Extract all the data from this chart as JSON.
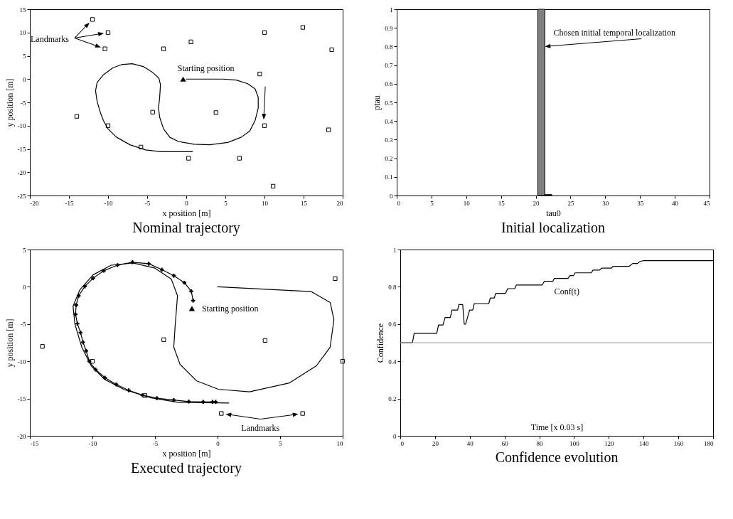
{
  "chart_data": [
    {
      "type": "line",
      "title": "Nominal trajectory",
      "xlabel": "x position [m]",
      "ylabel": "y position [m]",
      "xlim": [
        -20,
        20
      ],
      "ylim": [
        -25,
        15
      ],
      "xticks": [
        -20,
        -15,
        -10,
        -5,
        0,
        5,
        10,
        15,
        20
      ],
      "yticks": [
        -25,
        -20,
        -15,
        -10,
        -5,
        0,
        5,
        10,
        15
      ],
      "series": [
        {
          "type": "line",
          "color": "#000000",
          "x": [
            0,
            4.7,
            6.4,
            7.85,
            8.8,
            9.2,
            9.2,
            8.8,
            8.1,
            7.0,
            5.3,
            3.0,
            1.0,
            -1.0,
            -2.1,
            -2.9,
            -3.4,
            -3.55,
            -3.4,
            -3.3,
            -3.5,
            -4.35,
            -5.5,
            -6.9,
            -8.3,
            -9.4,
            -10.6,
            -11.4,
            -11.6,
            -11.4,
            -11.0,
            -10.6,
            -10.0,
            -8.9,
            -7.2,
            -5.2,
            -3.2,
            -1.0,
            0.8
          ],
          "values": [
            0,
            0,
            -0.2,
            -1.0,
            -2.1,
            -3.9,
            -6.2,
            -8.9,
            -11.2,
            -12.5,
            -13.6,
            -14.1,
            -14.0,
            -13.4,
            -12.5,
            -10.7,
            -8.2,
            -6.2,
            -3.9,
            -1.2,
            0.2,
            1.5,
            2.7,
            3.3,
            3.1,
            2.4,
            0.9,
            -0.7,
            -2.5,
            -4.8,
            -7.1,
            -8.9,
            -10.7,
            -12.5,
            -14.1,
            -15.2,
            -15.6,
            -15.6,
            -15.6
          ]
        },
        {
          "type": "scatter",
          "marker": "square",
          "color": "#000000",
          "x": [
            -12,
            -10,
            -10.4,
            -2.9,
            0.6,
            10,
            14.9,
            18.6,
            9.4,
            -14,
            -10,
            -4.3,
            3.8,
            10,
            18.2,
            -5.8,
            0.3,
            6.8,
            11.1
          ],
          "values": [
            12.8,
            10,
            6.5,
            6.5,
            8,
            10,
            11.1,
            6.3,
            1.1,
            -8,
            -10,
            -7.1,
            -7.2,
            -10,
            -10.9,
            -14.6,
            -17,
            -17,
            -23
          ]
        },
        {
          "type": "scatter",
          "marker": "triangle",
          "color": "#000000",
          "x": [
            -0.4
          ],
          "values": [
            0
          ]
        }
      ],
      "annotations": [
        {
          "text": "Starting position",
          "x": -0.4,
          "y": 0
        },
        "Landmarks"
      ]
    },
    {
      "type": "histogram",
      "title": "Initial localization",
      "xlabel": "tau0",
      "ylabel": "ptau",
      "xlim": [
        0,
        45
      ],
      "ylim": [
        0,
        1
      ],
      "xticks": [
        0,
        5,
        10,
        15,
        20,
        25,
        30,
        35,
        40,
        45
      ],
      "yticks": [
        0,
        0.1,
        0.2,
        0.3,
        0.4,
        0.5,
        0.6,
        0.7,
        0.8,
        0.9,
        1
      ],
      "bins": [
        20.3,
        21.3,
        22.3
      ],
      "values": [
        1,
        0.005
      ],
      "color": "#808080",
      "annotations": [
        {
          "text": "Chosen initial temporal localization",
          "x": 21.3,
          "y": 0.8
        }
      ]
    },
    {
      "type": "line",
      "title": "Executed trajectory",
      "xlabel": "x position [m]",
      "ylabel": "y position [m]",
      "xlim": [
        -15,
        10
      ],
      "ylim": [
        -20,
        5
      ],
      "xticks": [
        -15,
        -10,
        -5,
        0,
        5,
        10
      ],
      "yticks": [
        -20,
        -15,
        -10,
        -5,
        0,
        5
      ],
      "series": [
        {
          "type": "line",
          "color": "#000000",
          "x": [
            0,
            7.5,
            9.0,
            9.3,
            9.0,
            7.9,
            5.75,
            2.55,
            0.05,
            -1.7,
            -3.0,
            -3.5,
            -3.4,
            -3.2,
            -3.7,
            -5.0,
            -6.75,
            -8.5,
            -9.95,
            -11.0,
            -11.55,
            -11.4,
            -10.85,
            -10.1,
            -9.05,
            -7.45,
            -5.3,
            -3.15,
            0.9
          ],
          "values": [
            0,
            -0.65,
            -2.1,
            -4.4,
            -8.1,
            -10.6,
            -12.9,
            -14.1,
            -13.75,
            -12.6,
            -10.4,
            -8.1,
            -5.5,
            -1.2,
            1.05,
            2.5,
            3.2,
            2.9,
            1.6,
            -0.4,
            -2.6,
            -5.0,
            -8.1,
            -10.6,
            -12.4,
            -13.8,
            -14.9,
            -15.5,
            -15.6
          ]
        },
        {
          "type": "scatter",
          "marker": "square",
          "color": "#000000",
          "x": [
            -14,
            -10,
            -4.3,
            3.8,
            9.4,
            10,
            -5.8,
            0.3,
            6.8
          ],
          "values": [
            -8,
            -10,
            -7.1,
            -7.2,
            1.1,
            -10,
            -14.6,
            -17,
            -17
          ]
        },
        {
          "type": "line",
          "marker": "cross",
          "color": "#000000",
          "x": [
            -1.95,
            -2.1,
            -2.65,
            -3.5,
            -4.45,
            -5.5,
            -6.8,
            -8.0,
            -9.1,
            -9.95,
            -10.6,
            -11.1,
            -11.3,
            -11.35,
            -11.2,
            -10.95,
            -10.75,
            -10.5,
            -10.25,
            -9.75,
            -9.0,
            -8.1,
            -7.1,
            -6.0,
            -4.85,
            -3.5,
            -2.3,
            -1.15,
            -0.4,
            -0.15
          ],
          "values": [
            -1.85,
            -0.6,
            0.55,
            1.5,
            2.3,
            3.1,
            3.3,
            2.9,
            2.15,
            1.15,
            0.05,
            -1.2,
            -2.45,
            -3.7,
            -4.95,
            -6.15,
            -7.45,
            -8.6,
            -10,
            -11.1,
            -12.2,
            -13.1,
            -13.9,
            -14.55,
            -14.95,
            -15.2,
            -15.4,
            -15.45,
            -15.45,
            -15.45
          ]
        },
        {
          "type": "scatter",
          "marker": "triangle",
          "color": "#000000",
          "x": [
            -2.05
          ],
          "values": [
            -2.9
          ]
        }
      ],
      "annotations": [
        {
          "text": "Starting position",
          "x": -2.05,
          "y": -2.9
        },
        {
          "text": "Landmarks",
          "x": 0.3,
          "y": -17
        }
      ]
    },
    {
      "type": "line",
      "title": "Confidence evolution",
      "xlabel": "Time [x 0.03 s]",
      "ylabel": "Confidence",
      "xlim": [
        0,
        180
      ],
      "ylim": [
        0,
        1
      ],
      "xticks": [
        0,
        20,
        40,
        60,
        80,
        100,
        120,
        140,
        160,
        180
      ],
      "yticks": [
        0,
        0.2,
        0.4,
        0.6,
        0.8,
        1
      ],
      "series": [
        {
          "name": "Conf(t)",
          "color": "#000000",
          "x": [
            0,
            7,
            8,
            21,
            22,
            24.6,
            25.8,
            28.8,
            29.7,
            33,
            33.7,
            35.9,
            36.8,
            37.6,
            39.9,
            41.7,
            42.6,
            50.9,
            51.8,
            54.1,
            54.9,
            60.6,
            61.8,
            65.8,
            66.8,
            81.7,
            82.9,
            87.8,
            88.7,
            96.5,
            97.6,
            99.7,
            100.6,
            109.9,
            110.9,
            114.7,
            115.8,
            121.5,
            122.4,
            131.8,
            133.7,
            136.5,
            137.8,
            139.7,
            180
          ],
          "values": [
            0.5,
            0.5,
            0.55,
            0.55,
            0.595,
            0.595,
            0.635,
            0.635,
            0.675,
            0.675,
            0.705,
            0.705,
            0.6,
            0.6,
            0.675,
            0.675,
            0.71,
            0.71,
            0.74,
            0.74,
            0.765,
            0.765,
            0.79,
            0.79,
            0.81,
            0.81,
            0.83,
            0.83,
            0.845,
            0.845,
            0.86,
            0.86,
            0.875,
            0.875,
            0.89,
            0.89,
            0.9,
            0.9,
            0.91,
            0.91,
            0.925,
            0.925,
            0.935,
            0.94,
            0.94
          ]
        }
      ],
      "ref_lines": [
        {
          "axis": "y",
          "value": 0.5,
          "color": "#a0a0a0"
        }
      ]
    }
  ]
}
